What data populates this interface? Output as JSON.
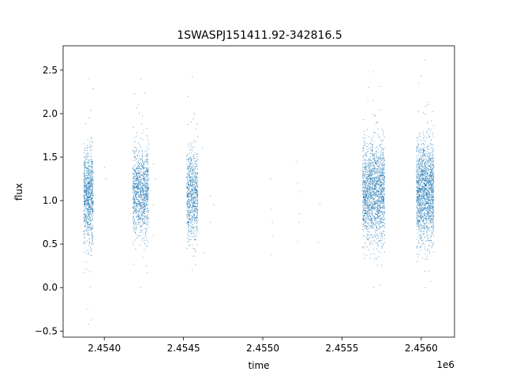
{
  "chart_data": {
    "type": "scatter",
    "title": "1SWASPJ151411.92-342816.5",
    "xlabel": "time",
    "ylabel": "flux",
    "x_offset_label": "1e6",
    "xlim": [
      2.45374,
      2.45621
    ],
    "ylim": [
      -0.57,
      2.78
    ],
    "x_ticks": [
      2.454,
      2.4545,
      2.455,
      2.4555,
      2.456
    ],
    "x_tick_labels": [
      "2.4540",
      "2.4545",
      "2.4550",
      "2.4555",
      "2.4560"
    ],
    "y_ticks": [
      -0.5,
      0.0,
      0.5,
      1.0,
      1.5,
      2.0,
      2.5
    ],
    "y_tick_labels": [
      "−0.5",
      "0.0",
      "0.5",
      "1.0",
      "1.5",
      "2.0",
      "2.5"
    ],
    "grid": false,
    "marker_color": "#1f77b4",
    "clusters": [
      {
        "x_range": [
          2.45387,
          2.45393
        ],
        "center": 1.05,
        "spread": 0.26,
        "count": 900,
        "y_min": -0.42,
        "y_max": 2.4
      },
      {
        "x_range": [
          2.45418,
          2.45428
        ],
        "center": 1.1,
        "spread": 0.25,
        "count": 1100,
        "y_min": 0.0,
        "y_max": 2.4
      },
      {
        "x_range": [
          2.45452,
          2.45459
        ],
        "center": 1.05,
        "spread": 0.25,
        "count": 800,
        "y_min": 0.2,
        "y_max": 2.42
      },
      {
        "x_range": [
          2.45563,
          2.45577
        ],
        "center": 1.1,
        "spread": 0.28,
        "count": 1800,
        "y_min": 0.0,
        "y_max": 2.48
      },
      {
        "x_range": [
          2.45597,
          2.45608
        ],
        "center": 1.1,
        "spread": 0.28,
        "count": 1700,
        "y_min": 0.0,
        "y_max": 2.62
      }
    ],
    "scattered_points": [
      [
        2.45467,
        1.05
      ],
      [
        2.45467,
        0.75
      ],
      [
        2.45469,
        0.95
      ],
      [
        2.45505,
        1.25
      ],
      [
        2.45505,
        0.38
      ],
      [
        2.45506,
        0.75
      ],
      [
        2.45506,
        0.6
      ],
      [
        2.45505,
        0.9
      ],
      [
        2.45521,
        1.45
      ],
      [
        2.45522,
        1.2
      ],
      [
        2.45522,
        0.53
      ],
      [
        2.45523,
        0.75
      ],
      [
        2.45523,
        0.85
      ],
      [
        2.45524,
        1.1
      ],
      [
        2.45535,
        0.52
      ],
      [
        2.45536,
        0.96
      ],
      [
        2.45431,
        1.42
      ],
      [
        2.45431,
        0.6
      ],
      [
        2.45432,
        1.25
      ],
      [
        2.45431,
        0.95
      ],
      [
        2.454,
        1.38
      ],
      [
        2.45401,
        1.25
      ],
      [
        2.45462,
        1.6
      ],
      [
        2.45463,
        0.4
      ]
    ]
  }
}
